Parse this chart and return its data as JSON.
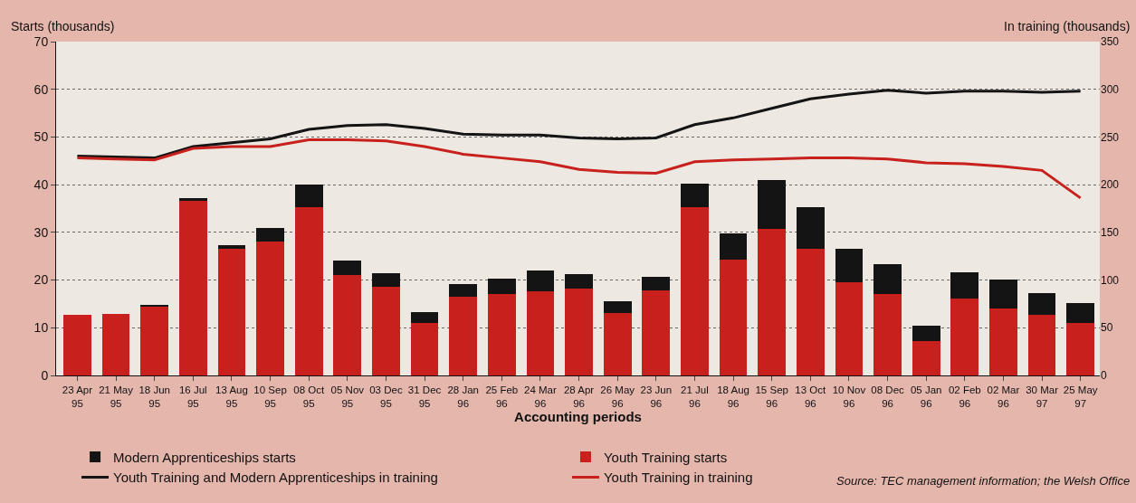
{
  "chart_data": {
    "type": "bar",
    "stacked": true,
    "xlabel": "Accounting periods",
    "ylabel": "Starts (thousands)",
    "y2label": "In training (thousands)",
    "categories": [
      "23 Apr 95",
      "21 May 95",
      "18 Jun 95",
      "16 Jul 95",
      "13 Aug 95",
      "10 Sep 95",
      "08 Oct 95",
      "05 Nov 95",
      "03 Dec 95",
      "31 Dec 95",
      "28 Jan 96",
      "25 Feb 96",
      "24 Mar 96",
      "28 Apr 96",
      "26 May 96",
      "23 Jun 96",
      "21 Jul 96",
      "18 Aug 96",
      "15 Sep 96",
      "13 Oct 96",
      "10 Nov 96",
      "08 Dec 96",
      "05 Jan 96",
      "02 Feb 96",
      "02 Mar 96",
      "30 Mar 97",
      "25 May 97"
    ],
    "series": [
      {
        "name": "Youth Training starts",
        "color": "#c8201c",
        "values": [
          12.7,
          12.9,
          14.6,
          36.7,
          26.6,
          28,
          35.2,
          21,
          18.5,
          11,
          16.5,
          17,
          17.6,
          18.3,
          13,
          17.8,
          35.3,
          24.3,
          30.8,
          26.5,
          19.5,
          17,
          7.3,
          16.2,
          14,
          12.8,
          11
        ]
      },
      {
        "name": "Modern Apprenticeships starts",
        "color": "#141414",
        "values": [
          0,
          0,
          0.2,
          0.5,
          0.7,
          3,
          4.8,
          3,
          3,
          2.2,
          2.7,
          3.3,
          4.4,
          3,
          2.5,
          2.9,
          5,
          5.5,
          10.2,
          8.7,
          7,
          6.4,
          3.1,
          5.4,
          6.1,
          4.5,
          4.1
        ]
      },
      {
        "name": "Youth Training and Modern Apprenticeships in training",
        "type": "line",
        "axis": "y2",
        "color": "#141414",
        "values": [
          230,
          229,
          228,
          240,
          244,
          248,
          258,
          262,
          263,
          259,
          253,
          252,
          252,
          249,
          248,
          249,
          263,
          270,
          280,
          290,
          295,
          299,
          296,
          298,
          298,
          297,
          298
        ]
      },
      {
        "name": "Youth Training in training",
        "type": "line",
        "axis": "y2",
        "color": "#c8201c",
        "values": [
          228,
          227,
          226,
          238,
          240,
          240,
          247,
          247,
          246,
          240,
          232,
          228,
          224,
          216,
          213,
          212,
          224,
          226,
          227,
          228,
          228,
          227,
          223,
          222,
          219,
          215,
          186
        ]
      }
    ],
    "ylim": [
      0,
      70
    ],
    "yticks": [
      0,
      10,
      20,
      30,
      40,
      50,
      60,
      70
    ],
    "y2lim": [
      0,
      350
    ],
    "y2ticks": [
      0,
      50,
      100,
      150,
      200,
      250,
      300,
      350
    ],
    "grid": "y",
    "legend": "bottom",
    "line_style": "solid",
    "annotations": [
      "Source: TEC management information; the Welsh Office"
    ]
  }
}
